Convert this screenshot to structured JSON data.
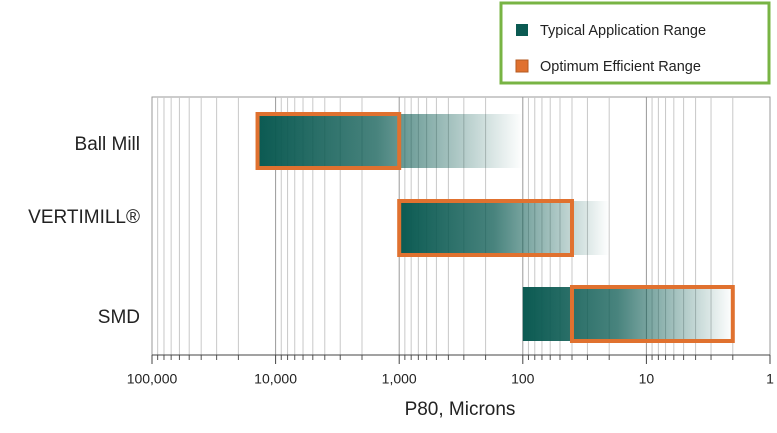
{
  "chart_data": {
    "type": "range",
    "categories": [
      "Ball Mill",
      "VERTIMILL®",
      "SMD"
    ],
    "series": [
      {
        "name": "Typical Application Range",
        "color": "#0b5a52",
        "values": [
          [
            14000,
            100
          ],
          [
            1000,
            20
          ],
          [
            100,
            2
          ]
        ]
      },
      {
        "name": "Optimum Efficient Range",
        "color": "#e0712f",
        "values": [
          [
            14000,
            1000
          ],
          [
            1000,
            40
          ],
          [
            40,
            2
          ]
        ]
      }
    ],
    "xlabel": "P80, Microns",
    "xlim": [
      100000,
      1
    ],
    "xticks": [
      {
        "value": 100000,
        "label": "100,000"
      },
      {
        "value": 10000,
        "label": "10,000"
      },
      {
        "value": 1000,
        "label": "1,000"
      },
      100,
      10,
      1
    ],
    "xminorticks": [
      90000,
      80000,
      70000,
      60000,
      50000,
      40000,
      30000,
      20000,
      9000,
      8000,
      7000,
      6000,
      5000,
      4000,
      3000,
      2000,
      900,
      800,
      700,
      600,
      500,
      400,
      300,
      200,
      90,
      80,
      70,
      60,
      50,
      40,
      30,
      20,
      9,
      8,
      7,
      6,
      5,
      4,
      3,
      2
    ],
    "log_scale": true,
    "grid": true,
    "legend": "top-right"
  }
}
